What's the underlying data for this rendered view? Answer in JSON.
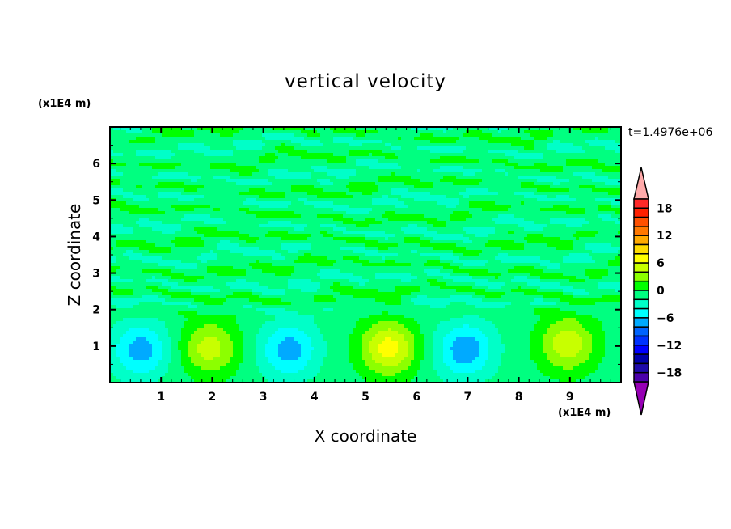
{
  "chart_data": {
    "type": "heatmap",
    "title": "vertical velocity",
    "xlabel": "X coordinate",
    "ylabel": "Z coordinate",
    "x_unit": "(x1E4 m)",
    "y_unit": "(x1E4 m)",
    "time_label": "t=1.4976e+06",
    "xlim": [
      0,
      10
    ],
    "ylim": [
      0,
      7
    ],
    "x_ticks": [
      1,
      2,
      3,
      4,
      5,
      6,
      7,
      8,
      9
    ],
    "y_ticks": [
      1,
      2,
      3,
      4,
      5,
      6
    ],
    "colorbar": {
      "range": [
        -20,
        20
      ],
      "step": 2,
      "tick_labels": [
        "18",
        "12",
        "6",
        "0",
        "−6",
        "−12",
        "−18"
      ],
      "tick_values": [
        18,
        12,
        6,
        0,
        -6,
        -12,
        -18
      ],
      "colors_high_to_low": [
        "#ff2828",
        "#ff2000",
        "#ff5000",
        "#ff7800",
        "#ffaa00",
        "#ffdc00",
        "#ffff00",
        "#c8ff00",
        "#8cff00",
        "#00ff00",
        "#00ff80",
        "#00ffc8",
        "#00ffff",
        "#00aaff",
        "#0064ff",
        "#0032ff",
        "#0000ff",
        "#0000aa",
        "#1e0aaa",
        "#4b00aa"
      ],
      "over_color": "#ffaaaa",
      "under_color": "#9600b4"
    },
    "convection_cells": [
      {
        "x": 0.6,
        "z": 0.9,
        "peak": -5
      },
      {
        "x": 1.95,
        "z": 0.95,
        "peak": 5
      },
      {
        "x": 3.5,
        "z": 0.9,
        "peak": -5
      },
      {
        "x": 5.45,
        "z": 0.95,
        "peak": 7
      },
      {
        "x": 6.95,
        "z": 0.9,
        "peak": -5.5
      },
      {
        "x": 8.95,
        "z": 1.05,
        "peak": 5.5
      }
    ],
    "background_level": -1
  }
}
